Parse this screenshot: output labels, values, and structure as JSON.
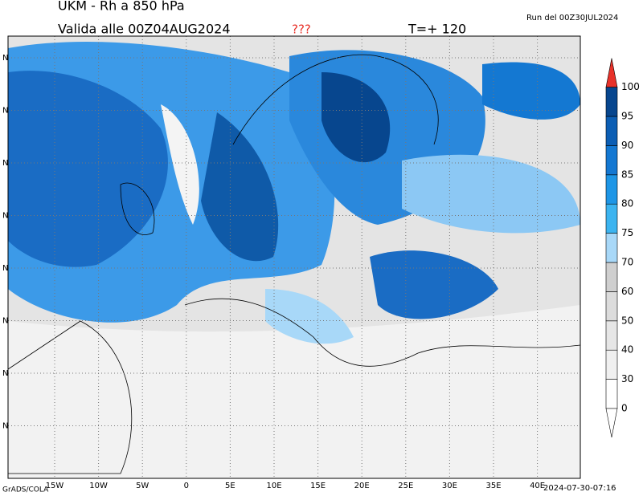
{
  "header": {
    "title": "UKM  -  Rh  a  850  hPa",
    "valid": "Valida alle  00Z04AUG2024",
    "flag": "???",
    "step": "T=+  120",
    "run": "Run del 00Z30JUL2024"
  },
  "map": {
    "lon_labels": [
      "15W",
      "10W",
      "5W",
      "0",
      "5E",
      "10E",
      "15E",
      "20E",
      "25E",
      "30E",
      "35E",
      "40E"
    ],
    "lat_labels": [
      "N",
      "N",
      "N",
      "N",
      "N",
      "N",
      "N",
      "N"
    ]
  },
  "colorbar": {
    "levels": [
      0,
      30,
      40,
      50,
      60,
      70,
      75,
      80,
      85,
      90,
      95,
      100
    ],
    "colors": [
      "#ffffff",
      "#f0f0f0",
      "#e6e6e6",
      "#dcdcdc",
      "#cfcfcf",
      "#a8d8f8",
      "#3cb4f0",
      "#1e96e6",
      "#1478d2",
      "#0c5eb4",
      "#07468e"
    ],
    "over_color": "#e8322a",
    "under_color": "#ffffff"
  },
  "footer": {
    "credit": "GrADS/COLA",
    "timestamp": "2024-07-30-07:16"
  }
}
